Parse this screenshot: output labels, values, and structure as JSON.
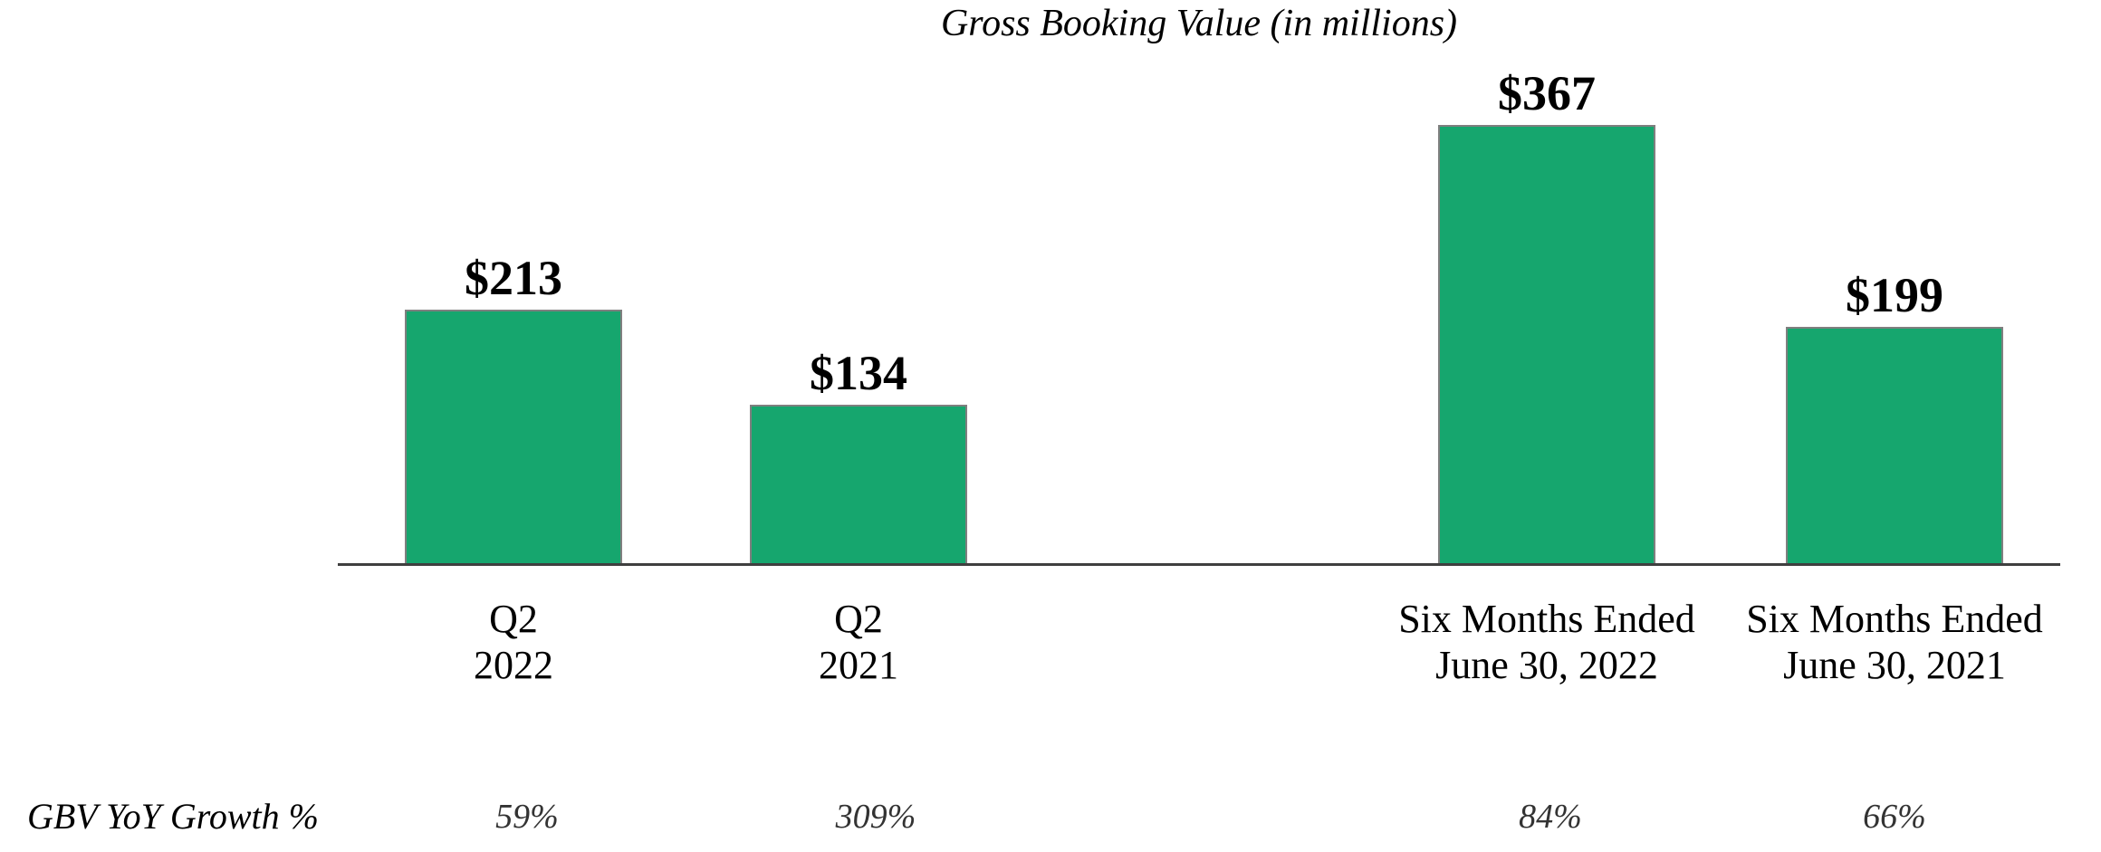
{
  "chart_data": {
    "type": "bar",
    "title": "Gross Booking Value (in millions)",
    "categories": [
      {
        "line1": "Q2",
        "line2": "2022"
      },
      {
        "line1": "Q2",
        "line2": "2021"
      },
      {
        "line1": "Six Months Ended",
        "line2": "June 30, 2022"
      },
      {
        "line1": "Six Months Ended",
        "line2": "June 30, 2021"
      }
    ],
    "values": [
      213,
      134,
      367,
      199
    ],
    "value_labels": [
      "$213",
      "$134",
      "$367",
      "$199"
    ],
    "growth_row": {
      "label": "GBV YoY Growth %",
      "values": [
        "59%",
        "309%",
        "84%",
        "66%"
      ]
    },
    "xlabel": "",
    "ylabel": "",
    "ylim": [
      0,
      380
    ],
    "grid": false,
    "legend": false,
    "colors": {
      "bar_fill": "#16A66E",
      "bar_border": "#7F7F7F",
      "axis_line": "#3F3F3F",
      "label_text": "#000000",
      "growth_text": "#333333"
    }
  }
}
